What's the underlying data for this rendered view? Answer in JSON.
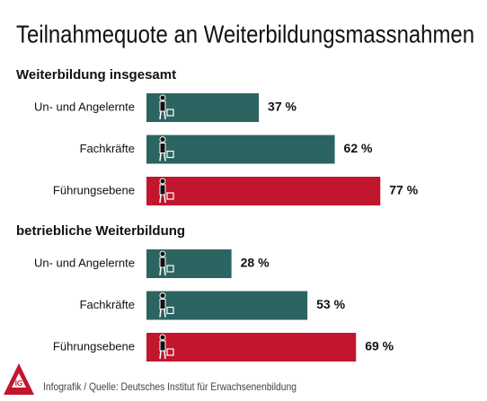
{
  "header": {
    "title": "Teilnahmequote an Weiterbildungsmassnahmen"
  },
  "chart_data": [
    {
      "type": "bar",
      "title": "Weiterbildung insgesamt",
      "categories": [
        "Un- und Angelernte",
        "Fachkräfte",
        "Führungsebene"
      ],
      "values": [
        37,
        62,
        77
      ],
      "value_labels": [
        "37 %",
        "62 %",
        "77 %"
      ],
      "colors": [
        "#2b6461",
        "#2b6461",
        "#c2162e"
      ]
    },
    {
      "type": "bar",
      "title": "betriebliche Weiterbildung",
      "categories": [
        "Un- und Angelernte",
        "Fachkräfte",
        "Führungsebene"
      ],
      "values": [
        28,
        53,
        69
      ],
      "value_labels": [
        "28 %",
        "53 %",
        "69 %"
      ],
      "colors": [
        "#2b6461",
        "#2b6461",
        "#c2162e"
      ]
    }
  ],
  "footer": {
    "source": "Infografik / Quelle: Deutsches Institut für Erwachsenenbildung"
  }
}
